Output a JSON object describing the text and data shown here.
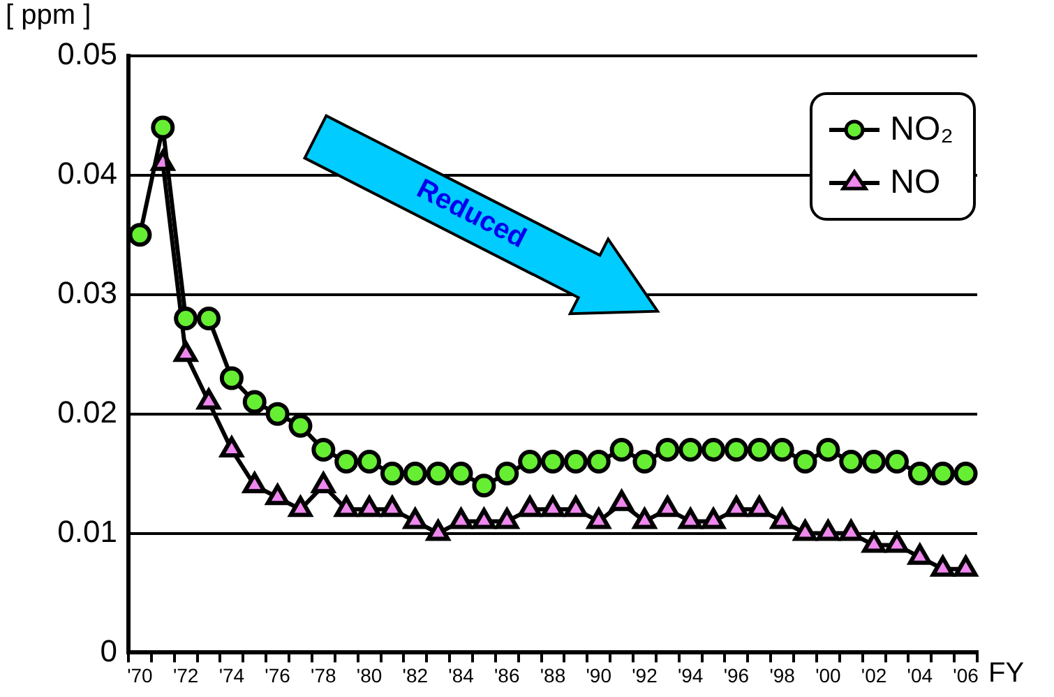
{
  "chart_data": {
    "type": "line",
    "xlabel": "FY",
    "ylabel": "[ ppm ]",
    "categories": [
      "'70",
      null,
      "'72",
      null,
      "'74",
      null,
      "'76",
      null,
      "'78",
      null,
      "'80",
      null,
      "'82",
      null,
      "'84",
      null,
      "'86",
      null,
      "'88",
      null,
      "'90",
      null,
      "'92",
      null,
      "'94",
      null,
      "'96",
      null,
      "'98",
      null,
      "'00",
      null,
      "'02",
      null,
      "'04",
      null,
      "'06"
    ],
    "series": [
      {
        "name": "NO₂",
        "color": "#66ee33",
        "marker": "circle",
        "values": [
          0.035,
          0.044,
          0.028,
          0.028,
          0.023,
          0.021,
          0.02,
          0.019,
          0.017,
          0.016,
          0.016,
          0.015,
          0.015,
          0.015,
          0.015,
          0.014,
          0.015,
          0.016,
          0.016,
          0.016,
          0.016,
          0.017,
          0.016,
          0.017,
          0.017,
          0.017,
          0.017,
          0.017,
          0.017,
          0.016,
          0.017,
          0.016,
          0.016,
          0.016,
          0.015,
          0.015,
          0.015
        ]
      },
      {
        "name": "NO",
        "color": "#ee88ee",
        "marker": "triangle",
        "values": [
          null,
          0.041,
          0.025,
          0.021,
          0.017,
          0.014,
          0.013,
          0.012,
          0.014,
          0.012,
          0.012,
          0.012,
          0.011,
          0.01,
          0.011,
          0.011,
          0.011,
          0.012,
          0.012,
          0.012,
          0.011,
          0.0125,
          0.011,
          0.012,
          0.011,
          0.011,
          0.012,
          0.012,
          0.011,
          0.01,
          0.01,
          0.01,
          0.009,
          0.009,
          0.008,
          0.007,
          0.007
        ]
      }
    ],
    "ylim": [
      0,
      0.05
    ],
    "yticks": [
      0,
      0.01,
      0.02,
      0.03,
      0.04,
      0.05
    ],
    "grid": "y",
    "legend": "top right",
    "line_style": "solid",
    "annotations": [
      "Reduced"
    ]
  }
}
